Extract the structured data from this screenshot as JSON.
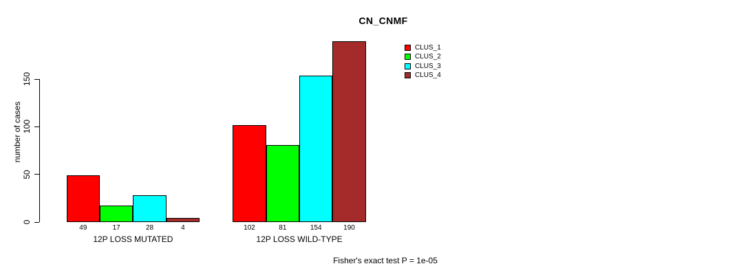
{
  "chart_data": {
    "type": "bar",
    "title": "CN_CNMF",
    "ylabel": "number of cases",
    "annotation": "Fisher's exact test P = 1e-05",
    "series": [
      {
        "name": "CLUS_1",
        "color": "#ff0000"
      },
      {
        "name": "CLUS_2",
        "color": "#00ff00"
      },
      {
        "name": "CLUS_3",
        "color": "#00ffff"
      },
      {
        "name": "CLUS_4",
        "color": "#a52a2a"
      }
    ],
    "groups": [
      {
        "label": "12P LOSS MUTATED",
        "values": [
          49,
          17,
          28,
          4
        ]
      },
      {
        "label": "12P LOSS WILD-TYPE",
        "values": [
          102,
          81,
          154,
          190
        ]
      }
    ],
    "yticks": [
      0,
      50,
      100,
      150
    ],
    "ylim": [
      0,
      190
    ],
    "grid": false,
    "legend_position": "top-right",
    "background_color": "#ffffff",
    "axis_color": "#000000"
  }
}
